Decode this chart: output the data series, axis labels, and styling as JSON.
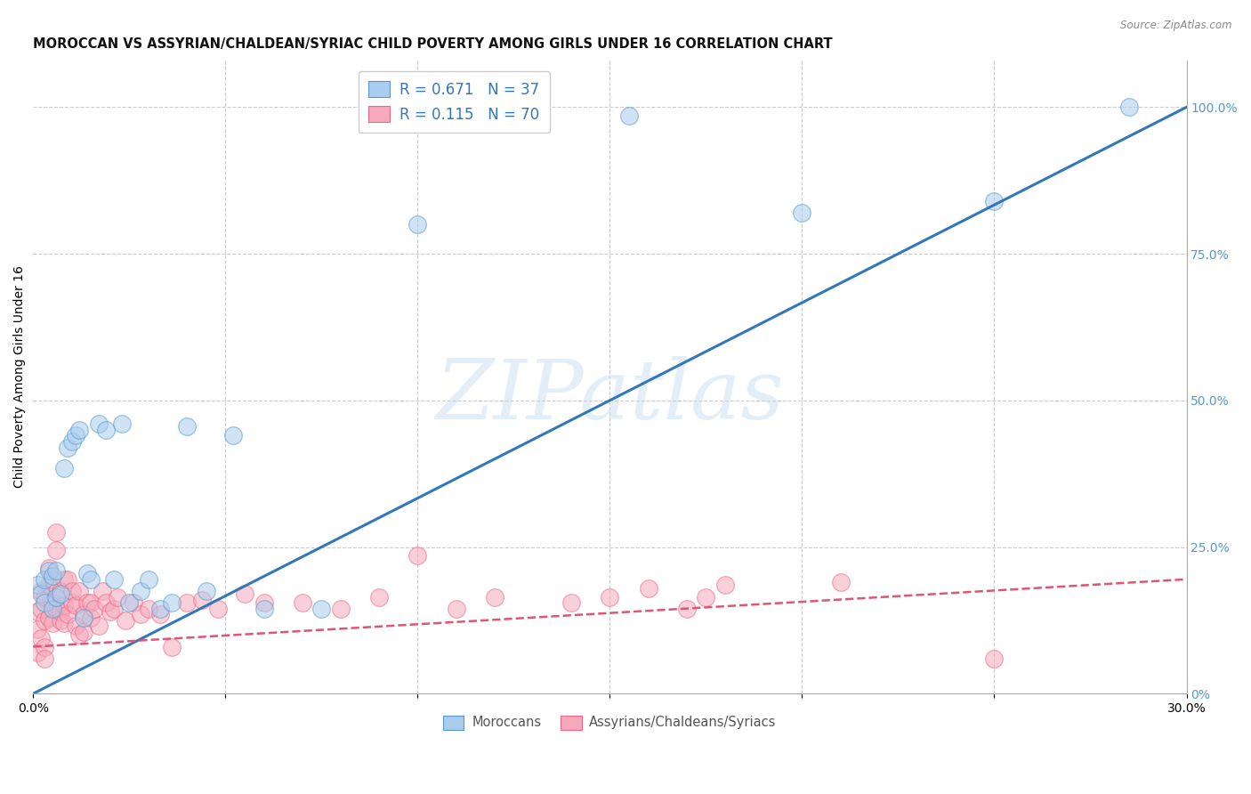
{
  "title": "MOROCCAN VS ASSYRIAN/CHALDEAN/SYRIAC CHILD POVERTY AMONG GIRLS UNDER 16 CORRELATION CHART",
  "source": "Source: ZipAtlas.com",
  "ylabel": "Child Poverty Among Girls Under 16",
  "legend_line1": "R = 0.671   N = 37",
  "legend_line2": "R = 0.115   N = 70",
  "bottom_label1": "Moroccans",
  "bottom_label2": "Assyrians/Chaldeans/Syriacs",
  "blue_face": "#aaccee",
  "blue_edge": "#5599cc",
  "blue_line": "#3377bb",
  "pink_face": "#f5aabb",
  "pink_edge": "#ee6688",
  "pink_line": "#dd5577",
  "right_tick_color": "#5599cc",
  "grid_color": "#cccccc",
  "bg_color": "#ffffff",
  "watermark": "ZIPatlas",
  "blue_scatter_x": [
    0.001,
    0.002,
    0.003,
    0.003,
    0.004,
    0.005,
    0.005,
    0.006,
    0.006,
    0.007,
    0.008,
    0.009,
    0.01,
    0.011,
    0.012,
    0.013,
    0.014,
    0.015,
    0.017,
    0.019,
    0.021,
    0.023,
    0.025,
    0.028,
    0.03,
    0.033,
    0.036,
    0.04,
    0.045,
    0.052,
    0.06,
    0.075,
    0.1,
    0.155,
    0.2,
    0.25,
    0.285
  ],
  "blue_scatter_y": [
    0.185,
    0.17,
    0.155,
    0.195,
    0.21,
    0.2,
    0.145,
    0.165,
    0.21,
    0.17,
    0.385,
    0.42,
    0.43,
    0.44,
    0.45,
    0.13,
    0.205,
    0.195,
    0.46,
    0.45,
    0.195,
    0.46,
    0.155,
    0.175,
    0.195,
    0.145,
    0.155,
    0.455,
    0.175,
    0.44,
    0.145,
    0.145,
    0.8,
    0.985,
    0.82,
    0.84,
    1.0
  ],
  "pink_scatter_x": [
    0.001,
    0.001,
    0.001,
    0.002,
    0.002,
    0.002,
    0.003,
    0.003,
    0.003,
    0.003,
    0.004,
    0.004,
    0.004,
    0.005,
    0.005,
    0.005,
    0.006,
    0.006,
    0.006,
    0.007,
    0.007,
    0.007,
    0.008,
    0.008,
    0.008,
    0.009,
    0.009,
    0.01,
    0.01,
    0.011,
    0.011,
    0.012,
    0.012,
    0.013,
    0.013,
    0.014,
    0.015,
    0.015,
    0.016,
    0.017,
    0.018,
    0.019,
    0.02,
    0.021,
    0.022,
    0.024,
    0.026,
    0.028,
    0.03,
    0.033,
    0.036,
    0.04,
    0.044,
    0.048,
    0.055,
    0.06,
    0.07,
    0.08,
    0.09,
    0.1,
    0.11,
    0.12,
    0.14,
    0.15,
    0.16,
    0.17,
    0.175,
    0.18,
    0.21,
    0.25
  ],
  "pink_scatter_y": [
    0.14,
    0.11,
    0.07,
    0.175,
    0.095,
    0.145,
    0.165,
    0.125,
    0.08,
    0.06,
    0.215,
    0.185,
    0.13,
    0.195,
    0.155,
    0.12,
    0.275,
    0.245,
    0.145,
    0.125,
    0.175,
    0.14,
    0.195,
    0.15,
    0.12,
    0.195,
    0.135,
    0.155,
    0.175,
    0.115,
    0.15,
    0.175,
    0.1,
    0.135,
    0.105,
    0.155,
    0.155,
    0.13,
    0.145,
    0.115,
    0.175,
    0.155,
    0.14,
    0.145,
    0.165,
    0.125,
    0.155,
    0.135,
    0.145,
    0.135,
    0.08,
    0.155,
    0.16,
    0.145,
    0.17,
    0.155,
    0.155,
    0.145,
    0.165,
    0.235,
    0.145,
    0.165,
    0.155,
    0.165,
    0.18,
    0.145,
    0.165,
    0.185,
    0.19,
    0.06
  ],
  "blue_trend_x": [
    0.0,
    0.3
  ],
  "blue_trend_y": [
    0.0,
    1.0
  ],
  "pink_trend_x": [
    0.0,
    0.3
  ],
  "pink_trend_y": [
    0.08,
    0.195
  ],
  "xlim": [
    0.0,
    0.3
  ],
  "ylim": [
    0.0,
    1.08
  ],
  "right_ytick_vals": [
    0.0,
    0.25,
    0.5,
    0.75,
    1.0
  ],
  "right_ytick_labels": [
    "0%",
    "25.0%",
    "50.0%",
    "75.0%",
    "100.0%"
  ],
  "xtick_vals": [
    0.0,
    0.05,
    0.1,
    0.15,
    0.2,
    0.25,
    0.3
  ],
  "xtick_labels": [
    "0.0%",
    "",
    "",
    "",
    "",
    "",
    "30.0%"
  ]
}
